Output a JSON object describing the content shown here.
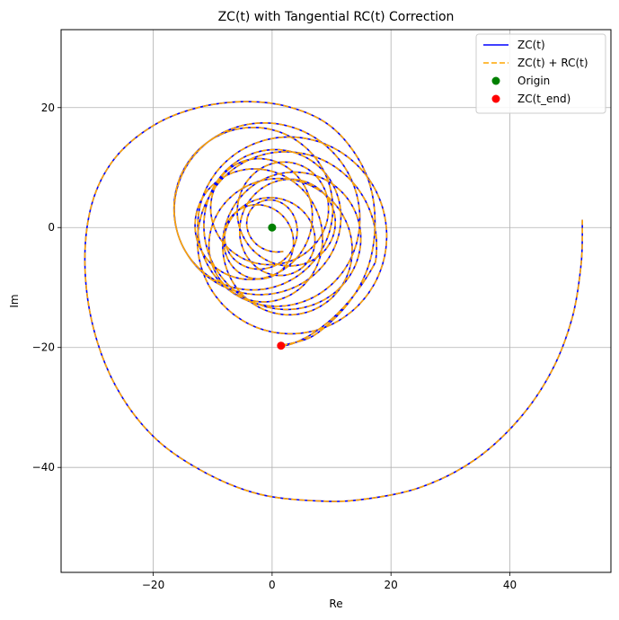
{
  "chart_data": {
    "type": "line",
    "title": "ZC(t) with Tangential RC(t) Correction",
    "xlabel": "Re",
    "ylabel": "Im",
    "xlim": [
      -35.5,
      57
    ],
    "ylim": [
      -57.5,
      33
    ],
    "xticks": [
      -20,
      0,
      20,
      40
    ],
    "yticks": [
      20,
      0,
      -20,
      -40
    ],
    "xtick_labels": [
      "−20",
      "0",
      "20",
      "40"
    ],
    "ytick_labels": [
      "20",
      "0",
      "−20",
      "−40"
    ],
    "grid": true,
    "legend_position": "top-right",
    "series": [
      {
        "name": "ZC(t)",
        "kind": "line",
        "color": "#0000ff",
        "style": "solid"
      },
      {
        "name": "ZC(t) + RC(t)",
        "kind": "line",
        "color": "#ffa500",
        "style": "dashed"
      },
      {
        "name": "Origin",
        "kind": "point",
        "color": "#008000",
        "x": 0,
        "y": 0
      },
      {
        "name": "ZC(t_end)",
        "kind": "point",
        "color": "#ff0000",
        "x": 1.5,
        "y": -19.7
      }
    ],
    "outer_spiral_points": [
      [
        52.2,
        1.3
      ],
      [
        52.0,
        -6
      ],
      [
        50.5,
        -15
      ],
      [
        47,
        -24
      ],
      [
        41.5,
        -32
      ],
      [
        34,
        -38.8
      ],
      [
        25,
        -43.3
      ],
      [
        15.5,
        -45.3
      ],
      [
        8,
        -45.6
      ],
      [
        -2,
        -44.5
      ],
      [
        -11,
        -41
      ],
      [
        -19.5,
        -35.3
      ],
      [
        -26,
        -27
      ],
      [
        -30,
        -17
      ],
      [
        -31.5,
        -6
      ],
      [
        -30.3,
        4
      ],
      [
        -26.5,
        11.5
      ],
      [
        -20,
        17
      ],
      [
        -12.5,
        20
      ],
      [
        -4.5,
        21
      ],
      [
        2.5,
        20.2
      ],
      [
        9,
        17.5
      ],
      [
        13.5,
        13
      ],
      [
        16.5,
        7
      ],
      [
        17.3,
        0
      ],
      [
        16,
        -7
      ],
      [
        12.5,
        -13
      ],
      [
        7,
        -18
      ],
      [
        1.5,
        -19.7
      ]
    ]
  }
}
